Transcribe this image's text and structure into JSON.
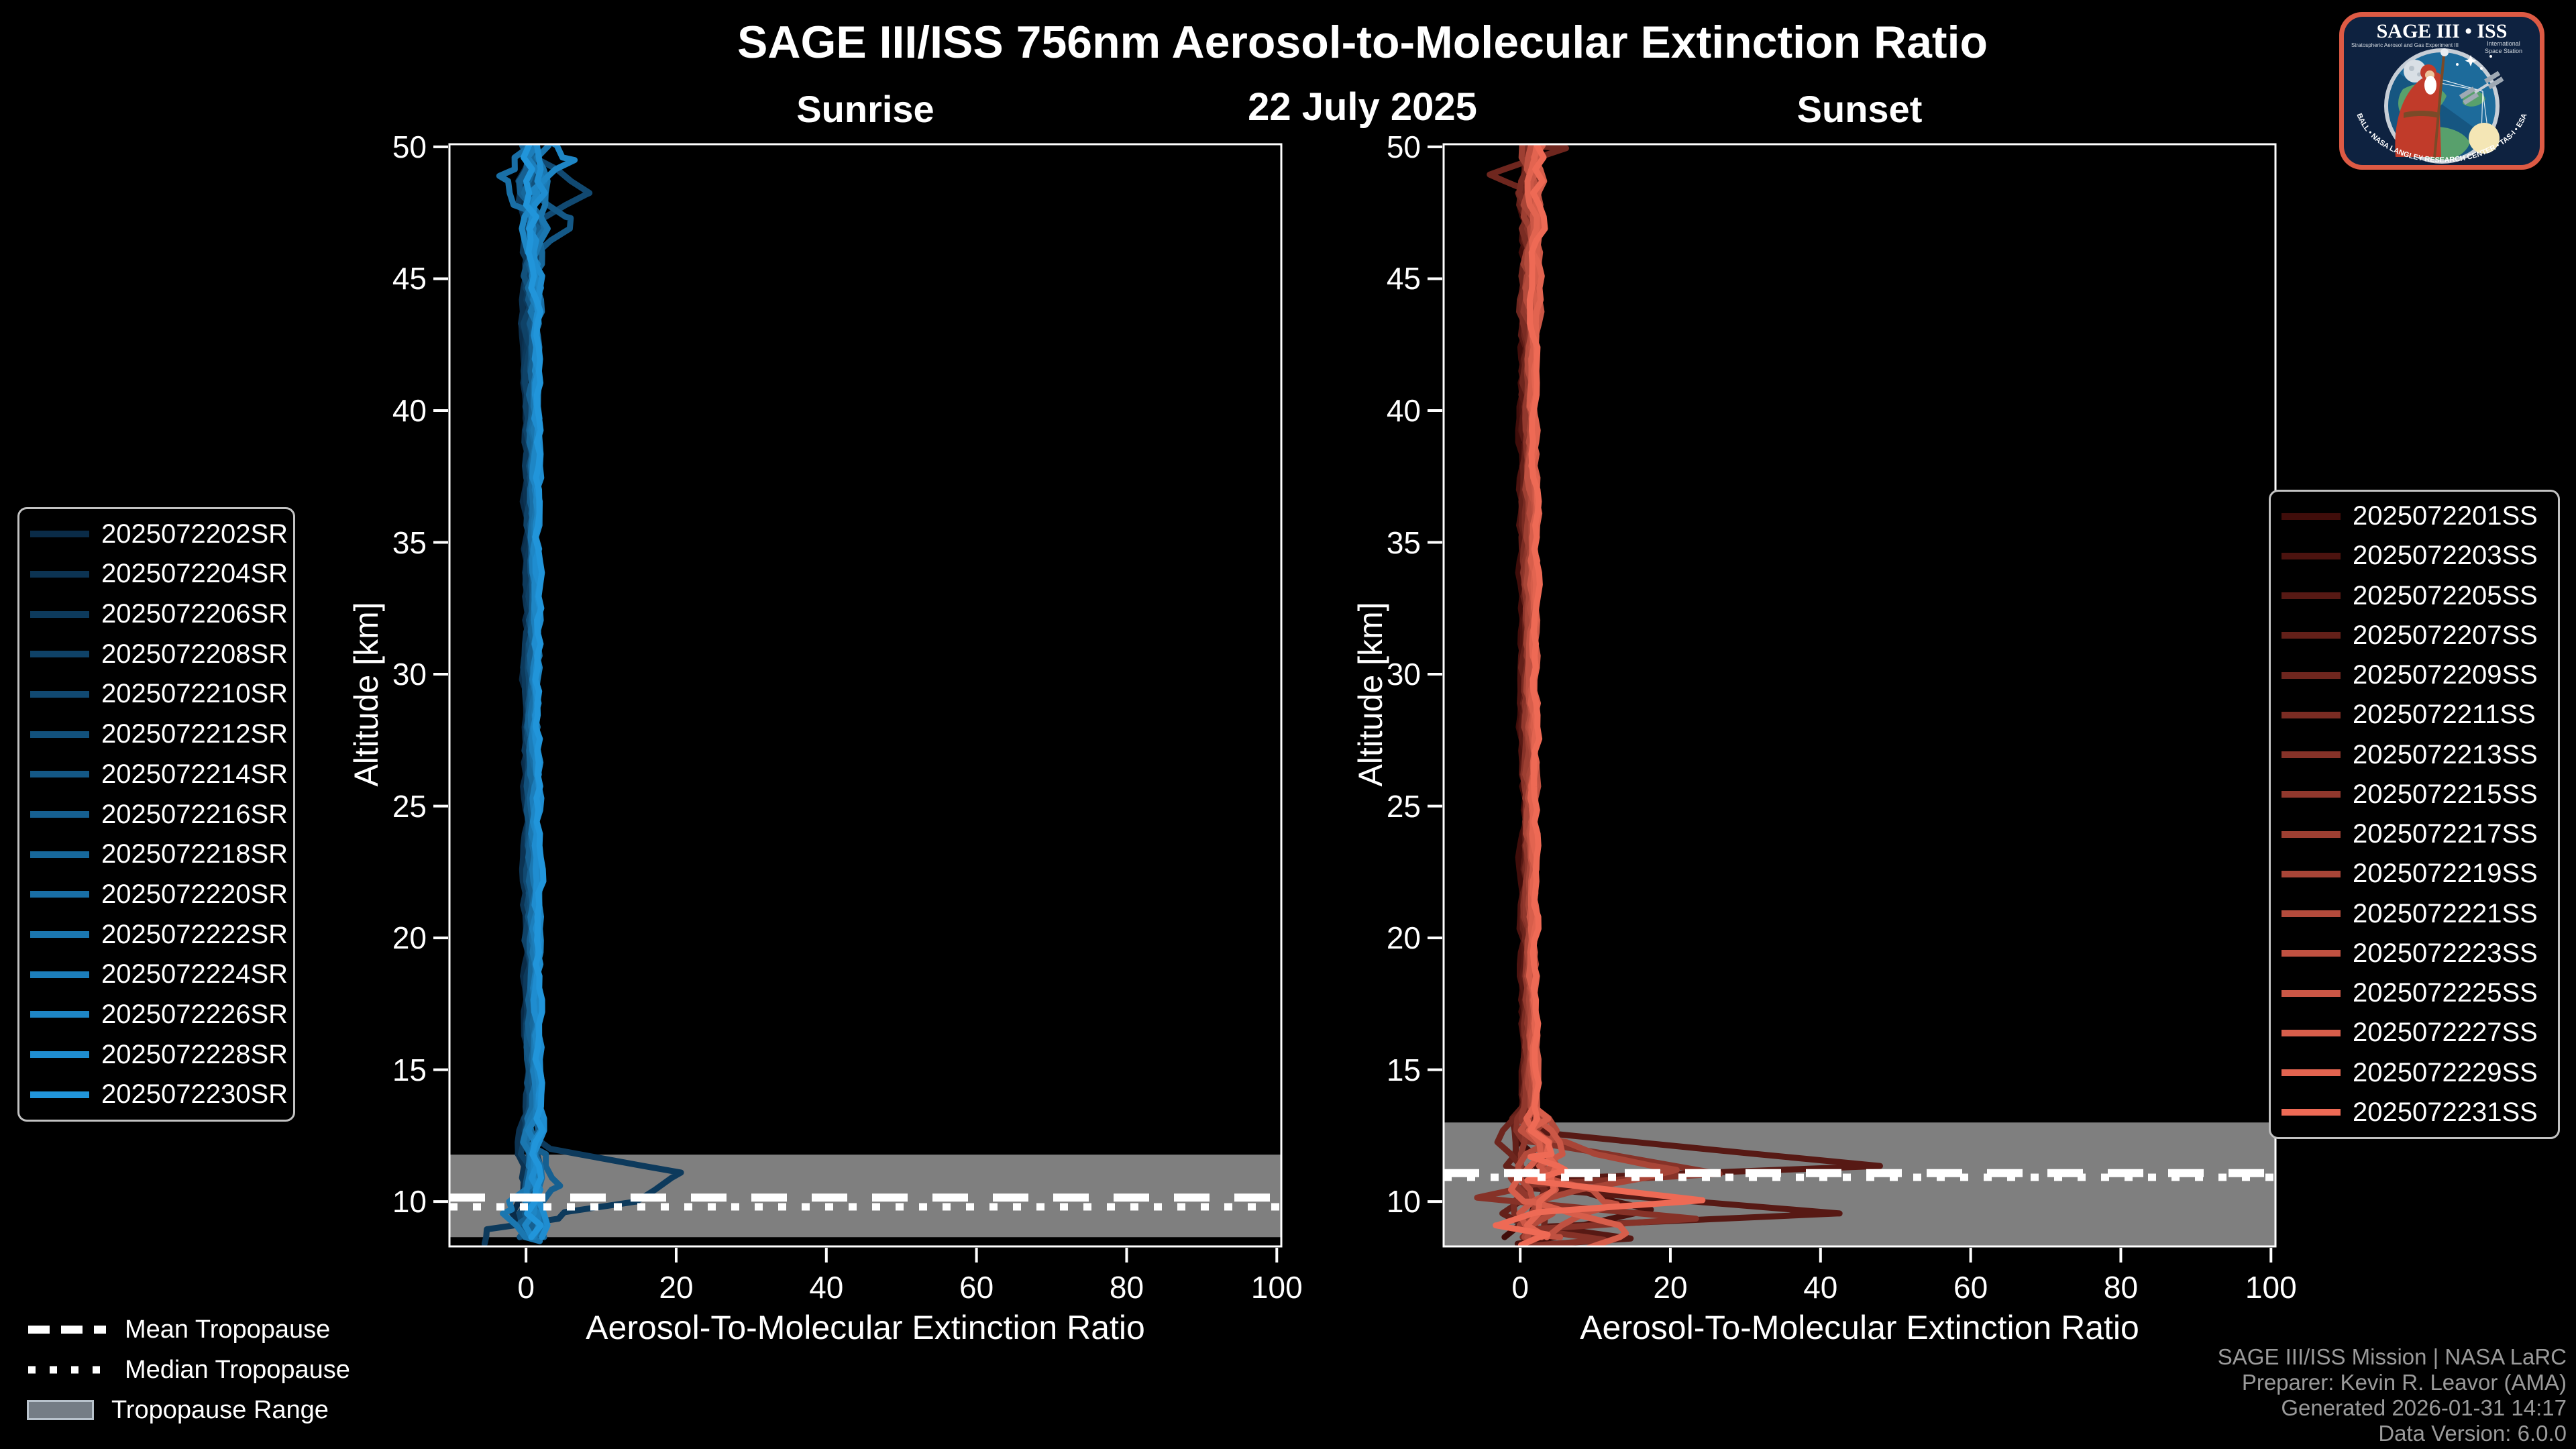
{
  "header": {
    "title": "SAGE III/ISS 756nm Aerosol-to-Molecular Extinction Ratio",
    "date": "22 July 2025"
  },
  "colors": {
    "background": "#000000",
    "spine": "#ffffff",
    "tick_text": "#ffffff",
    "tropopause_band": "#7f7f7f",
    "tropopause_line": "#ffffff",
    "credit_text": "#9a9a9a",
    "legend_border": "#c2c2c2",
    "sunrise_dark": "#0A2B47",
    "sunrise_bright": "#2195DA",
    "sunset_dark": "#400D0A",
    "sunset_bright": "#EE6A55"
  },
  "chart_data": [
    {
      "type": "line",
      "panel": "sunrise",
      "title": "Sunrise",
      "xlabel": "Aerosol-To-Molecular Extinction Ratio",
      "ylabel": "Altitude [km]",
      "xlim": [
        -10.2,
        100.6
      ],
      "ylim": [
        8.3,
        50.1
      ],
      "xticks": [
        0,
        20,
        40,
        60,
        80,
        100
      ],
      "yticks": [
        10,
        15,
        20,
        25,
        30,
        35,
        40,
        45,
        50
      ],
      "grid": false,
      "legend_position": "outside-left",
      "tropopause": {
        "mean": 10.15,
        "median": 9.8,
        "range": [
          8.65,
          11.78
        ]
      },
      "profile": {
        "center": 0.9,
        "amp_top": 1.7,
        "amp_high": 0.9,
        "amp_mid": 0.5,
        "amp_low": 1.2,
        "amp_bottom": 1.8,
        "step_km": 0.45,
        "seed": 11
      },
      "series": [
        {
          "name": "2025072202SR",
          "color": "#0A2B47"
        },
        {
          "name": "2025072204SR",
          "color": "#0C3352"
        },
        {
          "name": "2025072206SR",
          "color": "#0D3A5C"
        },
        {
          "name": "2025072208SR",
          "color": "#0F4267"
        },
        {
          "name": "2025072210SR",
          "color": "#114971"
        },
        {
          "name": "2025072212SR",
          "color": "#12517C"
        },
        {
          "name": "2025072214SR",
          "color": "#145886"
        },
        {
          "name": "2025072216SR",
          "color": "#166091"
        },
        {
          "name": "2025072218SR",
          "color": "#17689B"
        },
        {
          "name": "2025072220SR",
          "color": "#196FA6"
        },
        {
          "name": "2025072222SR",
          "color": "#1B77B0"
        },
        {
          "name": "2025072224SR",
          "color": "#1C7EBB"
        },
        {
          "name": "2025072226SR",
          "color": "#1E86C5"
        },
        {
          "name": "2025072228SR",
          "color": "#1F8DD0"
        },
        {
          "name": "2025072230SR",
          "color": "#2195DA"
        }
      ],
      "features": [
        {
          "series": 2,
          "path": [
            [
              1.2,
              12.4
            ],
            [
              3.0,
              12.0
            ],
            [
              20.6,
              11.1
            ],
            [
              14.9,
              10.0
            ],
            [
              5.1,
              9.6
            ],
            [
              4.6,
              9.35
            ],
            [
              -4.8,
              8.95
            ],
            [
              -5.8,
              8.4
            ]
          ]
        },
        {
          "series": 7,
          "bump": {
            "altitude": 10.6,
            "value": 4.5,
            "width": 1.4
          }
        },
        {
          "series": 10,
          "bump": {
            "altitude": 9.7,
            "value": -3.5,
            "width": 1.2
          }
        },
        {
          "series": 4,
          "bump": {
            "altitude": 48.2,
            "value": 7.0,
            "width": 1.6
          }
        },
        {
          "series": 9,
          "bump": {
            "altitude": 48.9,
            "value": -4.5,
            "width": 1.4
          }
        },
        {
          "series": 12,
          "bump": {
            "altitude": 49.5,
            "value": 5.0,
            "width": 1.2
          }
        },
        {
          "series": 6,
          "bump": {
            "altitude": 47.3,
            "value": 5.5,
            "width": 1.4
          }
        }
      ]
    },
    {
      "type": "line",
      "panel": "sunset",
      "title": "Sunset",
      "xlabel": "Aerosol-To-Molecular Extinction Ratio",
      "ylabel": "Altitude [km]",
      "xlim": [
        -10.2,
        100.6
      ],
      "ylim": [
        8.3,
        50.1
      ],
      "xticks": [
        0,
        20,
        40,
        60,
        80,
        100
      ],
      "yticks": [
        10,
        15,
        20,
        25,
        30,
        35,
        40,
        45,
        50
      ],
      "grid": false,
      "legend_position": "outside-right",
      "tropopause": {
        "mean": 11.08,
        "median": 10.92,
        "range": [
          8.3,
          13.0
        ]
      },
      "profile": {
        "center": 1.3,
        "amp_top": 1.1,
        "amp_high": 0.8,
        "amp_mid": 0.5,
        "amp_low": 2.8,
        "amp_bottom": 3.2,
        "step_km": 0.45,
        "seed": 42
      },
      "series": [
        {
          "name": "2025072201SS",
          "color": "#400D0A"
        },
        {
          "name": "2025072203SS",
          "color": "#4C130F"
        },
        {
          "name": "2025072205SS",
          "color": "#571914"
        },
        {
          "name": "2025072207SS",
          "color": "#632019"
        },
        {
          "name": "2025072209SS",
          "color": "#6E261E"
        },
        {
          "name": "2025072211SS",
          "color": "#7A2C23"
        },
        {
          "name": "2025072213SS",
          "color": "#863228"
        },
        {
          "name": "2025072215SS",
          "color": "#91382D"
        },
        {
          "name": "2025072217SS",
          "color": "#9D3F32"
        },
        {
          "name": "2025072219SS",
          "color": "#A84537"
        },
        {
          "name": "2025072221SS",
          "color": "#B44B3C"
        },
        {
          "name": "2025072223SS",
          "color": "#C05141"
        },
        {
          "name": "2025072225SS",
          "color": "#CB5746"
        },
        {
          "name": "2025072227SS",
          "color": "#D75E4B"
        },
        {
          "name": "2025072229SS",
          "color": "#E26450"
        },
        {
          "name": "2025072231SS",
          "color": "#EE6A55"
        }
      ],
      "features": [
        {
          "series": 2,
          "path": [
            [
              1.0,
              13.4
            ],
            [
              3.0,
              12.6
            ],
            [
              47.5,
              11.35
            ],
            [
              2.5,
              10.85
            ],
            [
              1.5,
              10.5
            ],
            [
              42.0,
              9.55
            ],
            [
              3.0,
              9.05
            ],
            [
              15.0,
              8.6
            ],
            [
              2.0,
              8.35
            ]
          ]
        },
        {
          "series": 6,
          "path": [
            [
              1.0,
              12.3
            ],
            [
              27.0,
              11.05
            ],
            [
              2.0,
              10.65
            ],
            [
              -5.5,
              10.15
            ],
            [
              24.0,
              9.35
            ],
            [
              1.5,
              8.95
            ],
            [
              12.0,
              8.55
            ],
            [
              1.0,
              8.3
            ]
          ]
        },
        {
          "series": 15,
          "path": [
            [
              1.5,
              11.7
            ],
            [
              6.0,
              11.2
            ],
            [
              1.0,
              10.8
            ],
            [
              24.0,
              10.05
            ],
            [
              2.0,
              9.6
            ],
            [
              -3.0,
              9.1
            ],
            [
              4.0,
              8.75
            ],
            [
              1.0,
              8.35
            ]
          ]
        },
        {
          "series": 4,
          "path": [
            [
              6.0,
              49.95
            ],
            [
              -4.0,
              48.95
            ],
            [
              1.5,
              48.3
            ]
          ]
        },
        {
          "series": 9,
          "bump": {
            "altitude": 11.2,
            "value": 16,
            "width": 1.3
          }
        },
        {
          "series": 11,
          "bump": {
            "altitude": 9.9,
            "value": 12,
            "width": 1.2
          }
        },
        {
          "series": 1,
          "bump": {
            "altitude": 9.7,
            "value": 18,
            "width": 1.3
          }
        },
        {
          "series": 13,
          "bump": {
            "altitude": 8.8,
            "value": 14,
            "width": 1.2
          }
        }
      ]
    }
  ],
  "tropopause_legend": {
    "mean_label": "Mean Tropopause",
    "median_label": "Median Tropopause",
    "range_label": "Tropopause Range"
  },
  "credits": {
    "lines": [
      "SAGE III/ISS Mission | NASA LaRC",
      "Preparer: Kevin R. Leavor (AMA)",
      "Generated 2026-01-31 14:17",
      "Data Version: 6.0.0"
    ]
  },
  "logo": {
    "title": "SAGE III • ISS",
    "subtitle_left": "Stratospheric Aerosol and Gas Experiment III",
    "subtitle_right_1": "International",
    "subtitle_right_2": "Space Station",
    "ring_text": "BALL • NASA LANGLEY RESEARCH CENTER • TAS-I • ESA"
  }
}
